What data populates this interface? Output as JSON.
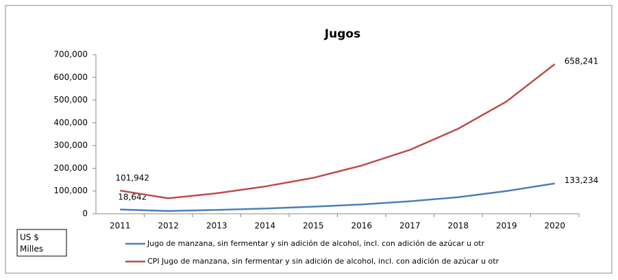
{
  "chart_data": {
    "type": "line",
    "title": "Jugos",
    "categories": [
      "2011",
      "2012",
      "2013",
      "2014",
      "2015",
      "2016",
      "2017",
      "2018",
      "2019",
      "2020"
    ],
    "series": [
      {
        "name": "Jugo de manzana, sin fermentar y sin adición de alcohol, incl. con adición de azúcar u otr",
        "color": "#4a7ebb",
        "values": [
          18642,
          12000,
          17000,
          23000,
          31000,
          41000,
          55000,
          73000,
          100000,
          133234
        ],
        "value_labels": [
          "18,642",
          null,
          null,
          null,
          null,
          null,
          null,
          null,
          null,
          "133,234"
        ]
      },
      {
        "name": "CPI Jugo de manzana, sin fermentar y sin adición de alcohol, incl. con adición de azúcar u otr",
        "color": "#be4b48",
        "values": [
          101942,
          68000,
          90000,
          120000,
          158000,
          212000,
          281000,
          374000,
          494000,
          658241
        ],
        "value_labels": [
          "101,942",
          null,
          null,
          null,
          null,
          null,
          null,
          null,
          null,
          "658,241"
        ]
      }
    ],
    "ylim": [
      0,
      700000
    ],
    "yticks": [
      0,
      {
        "value": 100000,
        "label": "100,000"
      },
      {
        "value": 200000,
        "label": "200,000"
      },
      {
        "value": 300000,
        "label": "300,000"
      },
      {
        "value": 400000,
        "label": "400,000"
      },
      {
        "value": 500000,
        "label": "500,000"
      },
      {
        "value": 600000,
        "label": "600,000"
      },
      {
        "value": 700000,
        "label": "700,000"
      }
    ],
    "annotation": [
      "US $",
      "Milles"
    ],
    "grid": false,
    "legend": "bottom"
  }
}
